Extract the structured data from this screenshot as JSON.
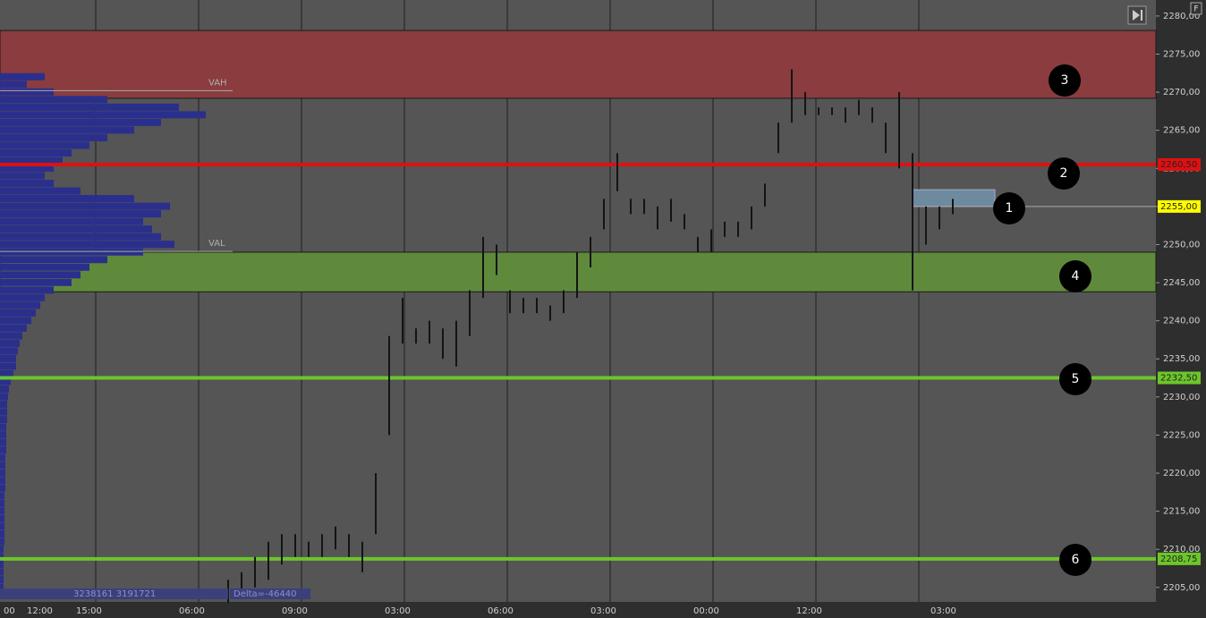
{
  "chart_data": {
    "type": "bar-chart",
    "ylim": [
      2203.1,
      2282.1
    ],
    "yticks": [
      {
        "value": 2205,
        "label": "2205,00"
      },
      {
        "value": 2210,
        "label": "2210,00"
      },
      {
        "value": 2215,
        "label": "2215,00"
      },
      {
        "value": 2220,
        "label": "2220,00"
      },
      {
        "value": 2225,
        "label": "2225,00"
      },
      {
        "value": 2230,
        "label": "2230,00"
      },
      {
        "value": 2235,
        "label": "2235,00"
      },
      {
        "value": 2240,
        "label": "2240,00"
      },
      {
        "value": 2245,
        "label": "2245,00"
      },
      {
        "value": 2250,
        "label": "2250,00"
      },
      {
        "value": 2255,
        "label": "2255,00"
      },
      {
        "value": 2260,
        "label": "2260,00"
      },
      {
        "value": 2265,
        "label": "2265,00"
      },
      {
        "value": 2270,
        "label": "2270,00"
      },
      {
        "value": 2275,
        "label": "2275,00"
      },
      {
        "value": 2280,
        "label": "2280,00"
      }
    ],
    "time_labels": [
      "00",
      "12:00",
      "15:00",
      "06:00",
      "09:00",
      "03:00",
      "06:00",
      "03:00",
      "00:00",
      "12:00",
      "03:00"
    ],
    "zones": [
      {
        "low": 2269.2,
        "high": 2278.1,
        "color": "#8a3c3f"
      },
      {
        "low": 2243.8,
        "high": 2249.0,
        "color": "#5f8a3c"
      }
    ],
    "levels": [
      {
        "value": 2260.5,
        "label": "2260,50",
        "color": "#e01010"
      },
      {
        "value": 2232.5,
        "label": "2232,50",
        "color": "#6cc52a"
      },
      {
        "value": 2208.75,
        "label": "2208,75",
        "color": "#6cc52a"
      }
    ],
    "last_price": {
      "value": 2255,
      "label": "2255,00",
      "color": "#ffff00"
    },
    "box": {
      "low": 2255,
      "high": 2257.2,
      "color": "#6d8a9e"
    },
    "value_area": {
      "vah": 2270.2,
      "val": 2249.1,
      "vah_label": "VAH",
      "val_label": "VAL"
    },
    "profile": {
      "color": "#2b2f8c",
      "top": 2272,
      "step": 1,
      "values": [
        50,
        30,
        60,
        120,
        200,
        230,
        180,
        150,
        120,
        100,
        80,
        70,
        60,
        50,
        60,
        90,
        150,
        190,
        180,
        160,
        170,
        180,
        195,
        160,
        120,
        100,
        90,
        80,
        60,
        50,
        45,
        40,
        35,
        30,
        25,
        22,
        20,
        18,
        18,
        15,
        12,
        10,
        9,
        8,
        8,
        8,
        7,
        7,
        7,
        7,
        6,
        6,
        6,
        6,
        6,
        5,
        5,
        5,
        5,
        5,
        5,
        5,
        4,
        4,
        4,
        4,
        4,
        4
      ]
    },
    "bars": {
      "color": "#141414",
      "low": [
        2203,
        2204,
        2205,
        2206,
        2208,
        2209,
        2209,
        2209,
        2210,
        2209,
        2207,
        2212,
        2225,
        2237,
        2237,
        2237,
        2235,
        2234,
        2238,
        2243,
        2246,
        2241,
        2241,
        2241,
        2240,
        2241,
        2243,
        2247,
        2252,
        2257,
        2254,
        2254,
        2252,
        2253,
        2252,
        2249,
        2249,
        2251,
        2251,
        2252,
        2255,
        2262,
        2266,
        2267,
        2267,
        2267,
        2266,
        2267,
        2266,
        2262,
        2260,
        2244,
        2250,
        2252,
        2254
      ],
      "high": [
        2206,
        2207,
        2209,
        2211,
        2212,
        2212,
        2211,
        2212,
        2213,
        2212,
        2211,
        2220,
        2238,
        2243,
        2239,
        2240,
        2239,
        2240,
        2244,
        2251,
        2250,
        2244,
        2243,
        2243,
        2242,
        2244,
        2249,
        2251,
        2256,
        2262,
        2256,
        2256,
        2255,
        2256,
        2254,
        2251,
        2252,
        2253,
        2253,
        2255,
        2258,
        2266,
        2273,
        2270,
        2268,
        2268,
        2268,
        2269,
        2268,
        2266,
        2270,
        2262,
        2255,
        2255,
        2256
      ]
    },
    "markers": [
      "1",
      "2",
      "3",
      "4",
      "5",
      "6"
    ],
    "totals": "3238161 3191721",
    "delta": "Delta=-46440",
    "corner": "F"
  }
}
